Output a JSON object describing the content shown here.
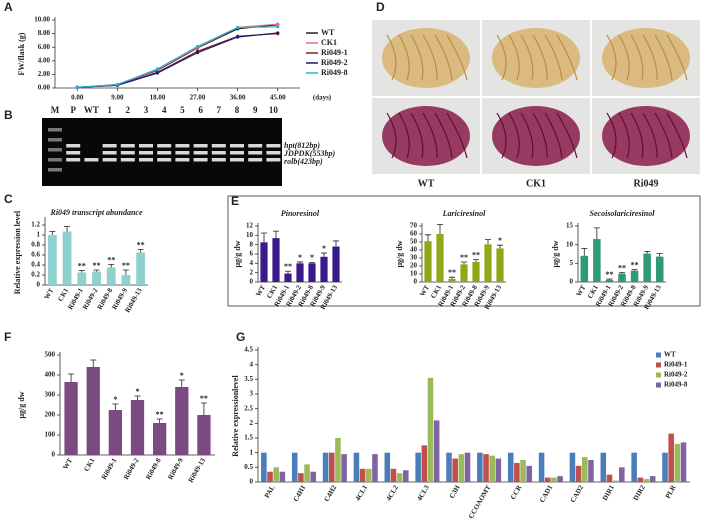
{
  "chart_data": [
    {
      "type": "line",
      "panel": "A",
      "ylabel": "FW/flask (g)",
      "xlabel": "(days)",
      "x": [
        0,
        9,
        18,
        27,
        36,
        45
      ],
      "xlim": [
        -5,
        50
      ],
      "xticks": [
        {
          "value": 0,
          "label": "0.00"
        },
        {
          "value": 9,
          "label": "9.00"
        },
        {
          "value": 18,
          "label": "18.00"
        },
        {
          "value": 27,
          "label": "27.00"
        },
        {
          "value": 36,
          "label": "36.00"
        },
        {
          "value": 45,
          "label": "45.00"
        }
      ],
      "ylim": [
        0,
        10
      ],
      "yticks": [
        {
          "value": 0,
          "label": "0.00"
        },
        {
          "value": 2,
          "label": "2.00"
        },
        {
          "value": 4,
          "label": "4.00"
        },
        {
          "value": 6,
          "label": "6.00"
        },
        {
          "value": 8,
          "label": "8.00"
        },
        {
          "value": 10,
          "label": "10.00"
        }
      ],
      "series": [
        {
          "name": "WT",
          "color": "#222222",
          "values": [
            0.1,
            0.5,
            2.6,
            5.9,
            8.7,
            9.3
          ]
        },
        {
          "name": "CK1",
          "color": "#e07090",
          "values": [
            0.1,
            0.5,
            2.7,
            6.0,
            8.9,
            9.4
          ]
        },
        {
          "name": "Ri049-1",
          "color": "#8b2020",
          "values": [
            0.1,
            0.4,
            2.3,
            5.4,
            7.6,
            8.0
          ]
        },
        {
          "name": "Ri049-2",
          "color": "#1a1a6b",
          "values": [
            0.1,
            0.4,
            2.2,
            5.2,
            7.5,
            8.1
          ]
        },
        {
          "name": "Ri049-8",
          "color": "#2ab0d0",
          "values": [
            0.1,
            0.5,
            2.8,
            6.1,
            8.9,
            9.0
          ]
        }
      ]
    },
    {
      "type": "bar",
      "panel": "C",
      "title": "Ri049 transcript abundance",
      "ylabel": "Relative expression level",
      "categories": [
        "WT",
        "CK1",
        "Ri049-1",
        "Ri049-2",
        "Ri049-8",
        "Ri049-9",
        "Ri049-13"
      ],
      "values": [
        1.0,
        1.07,
        0.25,
        0.27,
        0.35,
        0.2,
        0.65
      ],
      "errors": [
        0.07,
        0.1,
        0.04,
        0.03,
        0.06,
        0.1,
        0.06
      ],
      "significance": [
        null,
        null,
        "**",
        "**",
        "**",
        "**",
        "**"
      ],
      "color": "#8fd0d0",
      "ylim": [
        0,
        1.3
      ],
      "yticks": [
        0,
        0.2,
        0.4,
        0.6,
        0.8,
        1,
        1.2
      ]
    },
    {
      "type": "bar",
      "panel": "E",
      "title": "Pinoresinol",
      "ylabel": "μg/g dw",
      "categories": [
        "WT",
        "CK1",
        "Ri049-1",
        "Ri049-2",
        "Ri049-8",
        "Ri049-9",
        "Ri049-13"
      ],
      "values": [
        8.5,
        9.4,
        1.8,
        4.0,
        4.0,
        5.4,
        7.6
      ],
      "errors": [
        2.0,
        1.5,
        0.5,
        0.3,
        0.2,
        0.8,
        1.2
      ],
      "significance": [
        null,
        null,
        "**",
        "*",
        "*",
        "*",
        null
      ],
      "color": "#3a1a8c",
      "ylim": [
        0,
        12
      ],
      "yticks": [
        0,
        2,
        4,
        6,
        8,
        10,
        12
      ]
    },
    {
      "type": "bar",
      "title": "Lariciresinol",
      "ylabel": "μg/g dw",
      "categories": [
        "WT",
        "CK1",
        "Ri049-1",
        "Ri049-2",
        "Ri049-8",
        "Ri049-9",
        "Ri049-13"
      ],
      "values": [
        51,
        60,
        4,
        22,
        25,
        47,
        42
      ],
      "errors": [
        8,
        12,
        2,
        3,
        3,
        6,
        4
      ],
      "significance": [
        null,
        null,
        "**",
        "**",
        "**",
        null,
        "*"
      ],
      "color": "#8fa817",
      "ylim": [
        0,
        70
      ],
      "yticks": [
        0,
        10,
        20,
        30,
        40,
        50,
        60,
        70
      ]
    },
    {
      "type": "bar",
      "title": "Secoisolariciresinol",
      "ylabel": "μg/g dw",
      "categories": [
        "WT",
        "CK1",
        "Ri049-1",
        "Ri049-2",
        "Ri049-8",
        "Ri049-9",
        "Ri049-13"
      ],
      "values": [
        7.0,
        11.5,
        0.6,
        2.2,
        3.0,
        7.6,
        6.8
      ],
      "errors": [
        2.0,
        3.0,
        0.2,
        0.3,
        0.3,
        0.6,
        0.8
      ],
      "significance": [
        null,
        null,
        "**",
        "**",
        "**",
        null,
        null
      ],
      "color": "#2f9a78",
      "ylim": [
        0,
        15
      ],
      "yticks": [
        0,
        5,
        10,
        15
      ]
    },
    {
      "type": "bar",
      "panel": "F",
      "ylabel": "μg/g dw",
      "categories": [
        "WT",
        "CK1",
        "Ri049-1",
        "Ri049-2",
        "Ri049-8",
        "Ri049-9",
        "Ri049-13"
      ],
      "values": [
        365,
        440,
        225,
        275,
        160,
        340,
        200
      ],
      "errors": [
        40,
        35,
        30,
        20,
        20,
        35,
        60
      ],
      "significance": [
        null,
        null,
        "*",
        "*",
        "**",
        "*",
        "**"
      ],
      "color": "#7a4a80",
      "ylim": [
        0,
        500
      ],
      "yticks": [
        0,
        100,
        200,
        300,
        400,
        500
      ]
    },
    {
      "type": "bar",
      "panel": "G",
      "ylabel": "Relative expressionlevel",
      "categories": [
        "PAL",
        "C4H1",
        "C4H2",
        "4CL1",
        "4CL2",
        "4CL3",
        "C3H",
        "CCOAOMT",
        "CCR",
        "CAD1",
        "CAD2",
        "DIR1",
        "DIR2",
        "PLR"
      ],
      "ylim": [
        0,
        4.5
      ],
      "yticks": [
        0,
        0.5,
        1,
        1.5,
        2,
        2.5,
        3,
        3.5,
        4,
        4.5
      ],
      "series": [
        {
          "name": "WT",
          "color": "#4a7ebb",
          "values": [
            1.0,
            1.0,
            1.0,
            1.0,
            1.0,
            1.0,
            1.0,
            1.0,
            1.0,
            1.0,
            1.0,
            1.0,
            1.0,
            1.0
          ]
        },
        {
          "name": "Ri049-1",
          "color": "#c0504d",
          "values": [
            0.35,
            0.3,
            1.0,
            0.45,
            0.45,
            1.25,
            0.8,
            0.95,
            0.65,
            0.15,
            0.55,
            0.25,
            0.15,
            1.65
          ]
        },
        {
          "name": "Ri049-2",
          "color": "#9bbb59",
          "values": [
            0.5,
            0.6,
            1.5,
            0.45,
            0.3,
            3.55,
            0.95,
            0.9,
            0.75,
            0.15,
            0.85,
            0.05,
            0.1,
            1.3
          ]
        },
        {
          "name": "Ri049-8",
          "color": "#8064a2",
          "values": [
            0.35,
            0.35,
            0.95,
            0.95,
            0.4,
            2.1,
            1.0,
            0.8,
            0.55,
            0.2,
            0.75,
            0.5,
            0.2,
            1.35
          ]
        }
      ]
    }
  ],
  "gel": {
    "panel": "B",
    "lanes": [
      "M",
      "P",
      "WT",
      "1",
      "2",
      "3",
      "4",
      "5",
      "6",
      "7",
      "8",
      "9",
      "10"
    ],
    "bands": [
      "hpt(812bp)",
      "JDPDK(553bp)",
      "rolb(423bp)"
    ]
  },
  "photos": {
    "panel": "D",
    "labels": [
      "WT",
      "CK1",
      "Ri049"
    ]
  }
}
